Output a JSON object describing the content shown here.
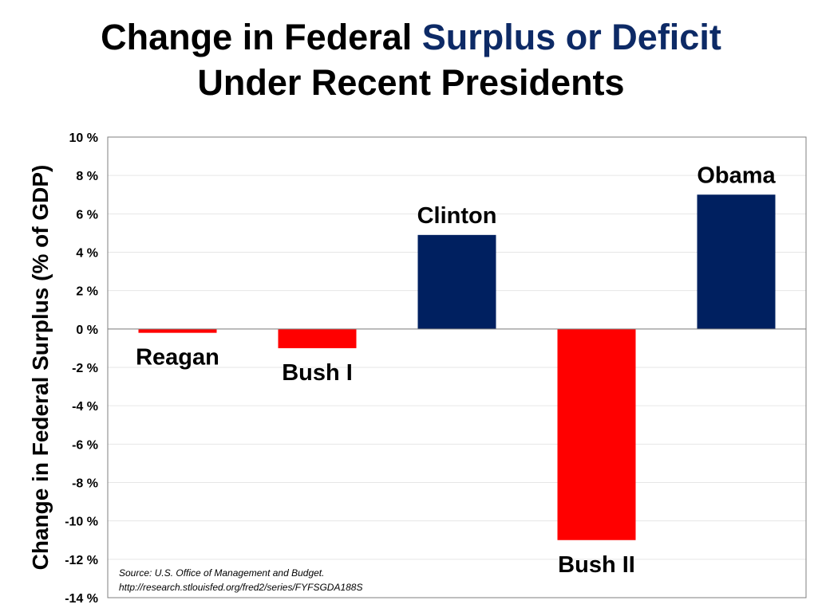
{
  "title": {
    "line1_prefix": "Change in Federal ",
    "line1_accent": "Surplus or Deficit",
    "line2": "Under Recent Presidents"
  },
  "colors": {
    "accent": "#0d2a66",
    "positive_bar": "#002060",
    "negative_bar": "#ff0000"
  },
  "chart_data": {
    "type": "bar",
    "ylabel": "Change in Federal Surplus (% of GDP)",
    "ylim": [
      -14,
      10
    ],
    "yticks": [
      10,
      8,
      6,
      4,
      2,
      0,
      -2,
      -4,
      -6,
      -8,
      -10,
      -12,
      -14
    ],
    "ytick_labels": [
      "10 %",
      "8 %",
      "6 %",
      "4 %",
      "2 %",
      "0 %",
      "-2 %",
      "-4 %",
      "-6 %",
      "-8 %",
      "-10 %",
      "-12 %",
      "-14 %"
    ],
    "categories": [
      "Reagan",
      "Bush I",
      "Clinton",
      "Bush II",
      "Obama"
    ],
    "values": [
      -0.2,
      -1.0,
      4.9,
      -11.0,
      7.0
    ],
    "grid": true,
    "legend": "none",
    "source": {
      "line1": "Source: U.S. Office of Management and Budget.",
      "line2": "http://research.stlouisfed.org/fred2/series/FYFSGDA188S"
    }
  }
}
